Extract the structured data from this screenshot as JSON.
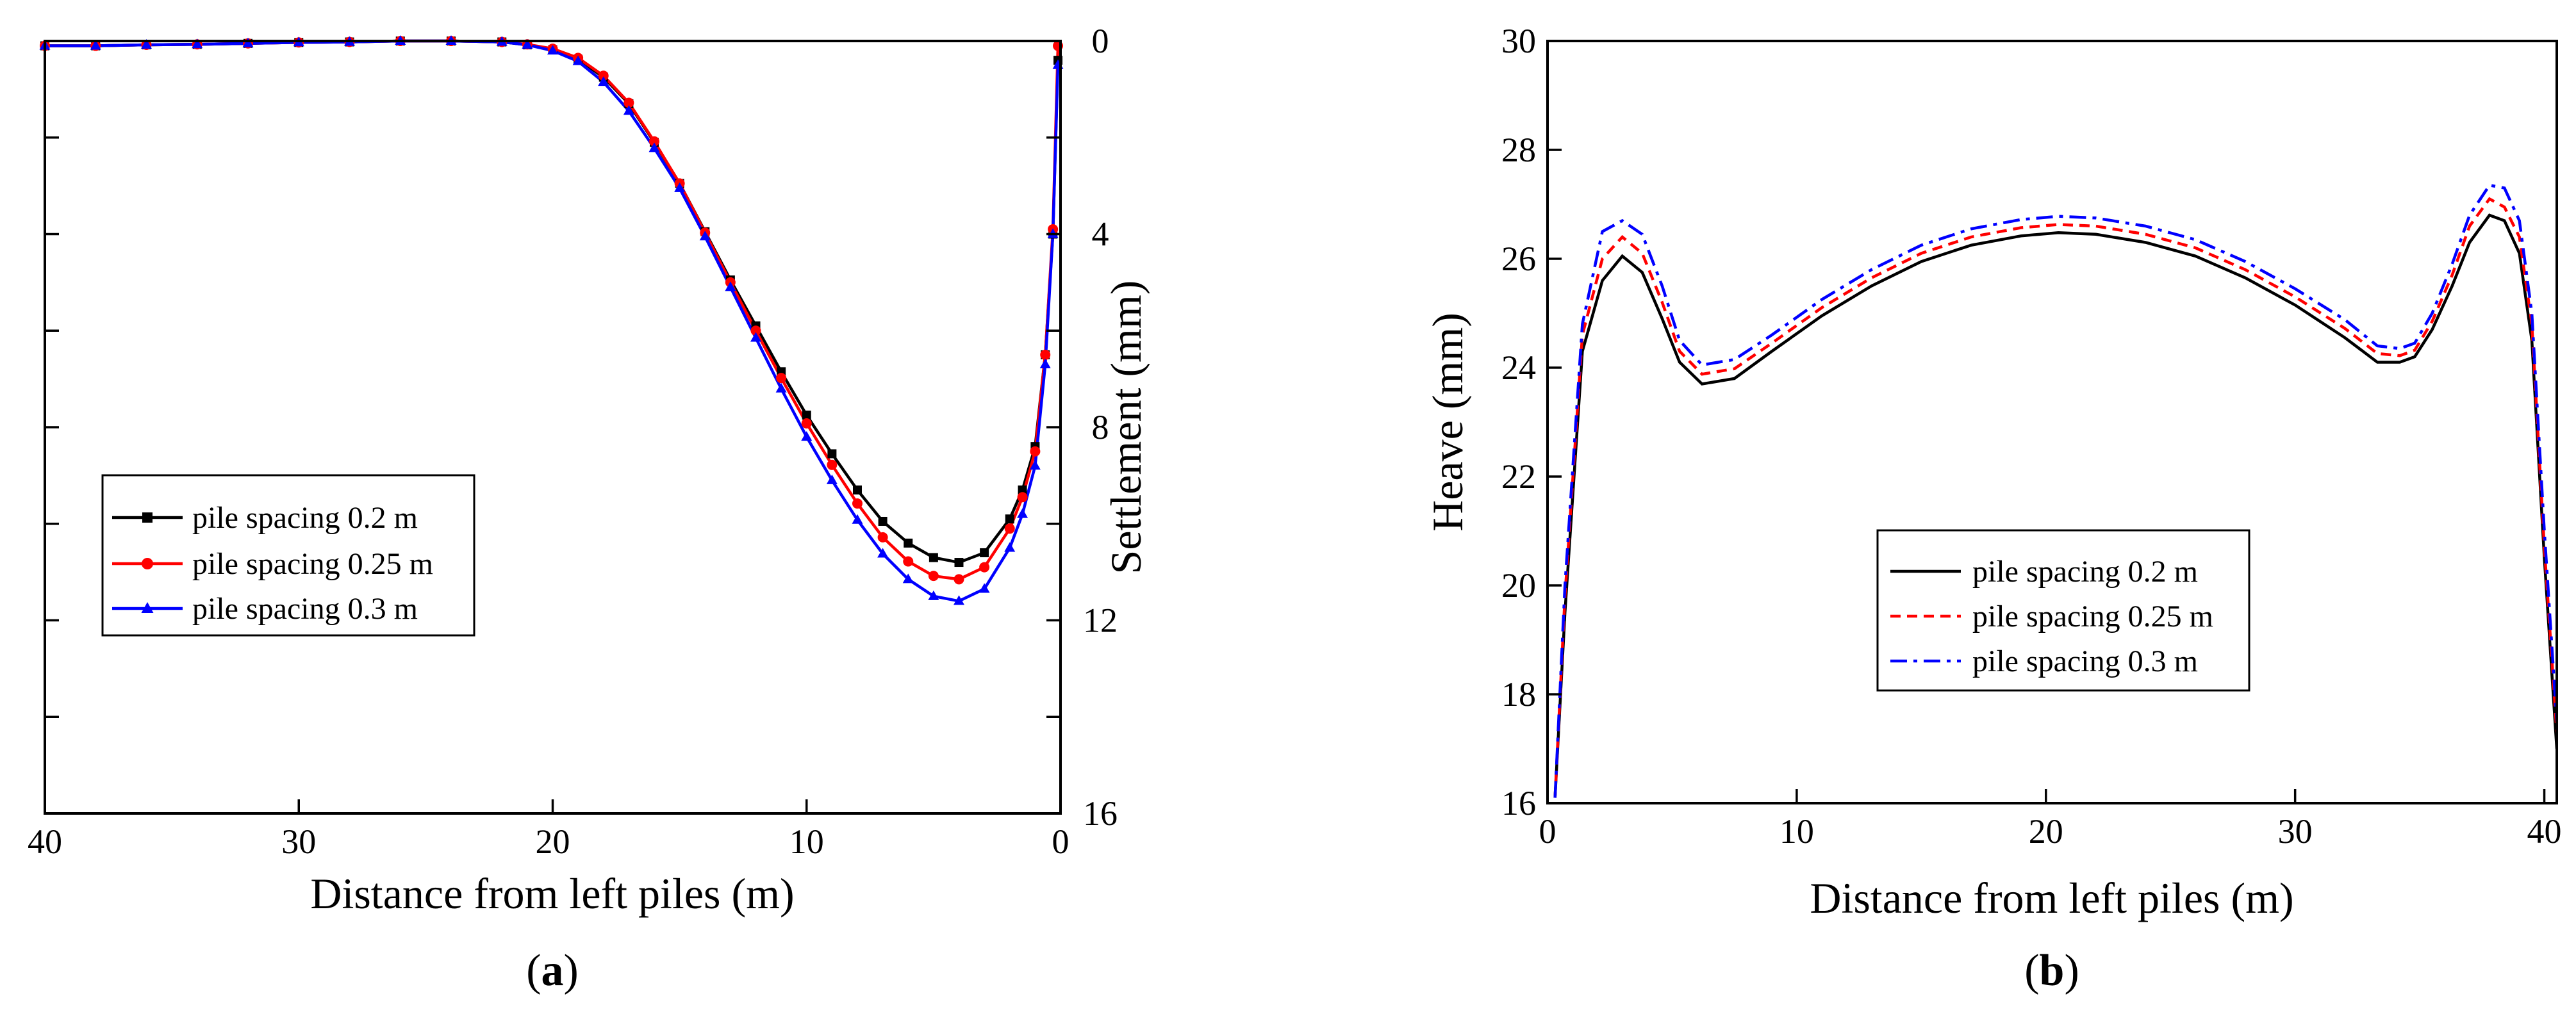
{
  "figure": {
    "panel_a_label": "a",
    "panel_b_label": "b"
  },
  "chart_data": [
    {
      "type": "line",
      "panel": "a",
      "xlabel": "Distance from left piles (m)",
      "ylabel": "Settlement (mm)",
      "xlim": [
        40,
        0
      ],
      "ylim": [
        0,
        16
      ],
      "xticks": [
        40,
        30,
        20,
        10,
        0
      ],
      "yticks_labeled": [
        0,
        4,
        8,
        12,
        16
      ],
      "yticks_minor": [
        2,
        6,
        10,
        14
      ],
      "yaxis_side": "right",
      "y_inverted": true,
      "legend_position": "center-left",
      "x": [
        40,
        38,
        36,
        34,
        32,
        30,
        28,
        26,
        24,
        22,
        21,
        20,
        19,
        18,
        17,
        16,
        15,
        14,
        13,
        12,
        11,
        10,
        9,
        8,
        7,
        6,
        5,
        4,
        3,
        2,
        1.5,
        1,
        0.6,
        0.3,
        0.1
      ],
      "series": [
        {
          "name": "pile spacing 0.2 m",
          "color": "#000000",
          "marker": "square",
          "values": [
            0.1,
            0.1,
            0.08,
            0.07,
            0.05,
            0.03,
            0.02,
            0.0,
            0.0,
            0.02,
            0.08,
            0.18,
            0.38,
            0.75,
            1.3,
            2.1,
            2.95,
            3.95,
            4.95,
            5.9,
            6.85,
            7.75,
            8.55,
            9.3,
            9.95,
            10.4,
            10.7,
            10.8,
            10.6,
            9.9,
            9.3,
            8.4,
            6.5,
            4.0,
            0.4
          ]
        },
        {
          "name": "pile spacing 0.25 m",
          "color": "#ff0000",
          "marker": "circle",
          "values": [
            0.1,
            0.1,
            0.08,
            0.07,
            0.05,
            0.03,
            0.02,
            0.0,
            0.0,
            0.02,
            0.07,
            0.16,
            0.35,
            0.72,
            1.28,
            2.08,
            2.95,
            3.97,
            5.0,
            6.0,
            6.98,
            7.92,
            8.78,
            9.58,
            10.28,
            10.78,
            11.08,
            11.15,
            10.9,
            10.1,
            9.45,
            8.5,
            6.5,
            3.9,
            0.1
          ]
        },
        {
          "name": "pile spacing 0.3 m",
          "color": "#0000ff",
          "marker": "triangle",
          "values": [
            0.1,
            0.1,
            0.08,
            0.07,
            0.05,
            0.03,
            0.02,
            0.0,
            0.0,
            0.02,
            0.08,
            0.2,
            0.42,
            0.85,
            1.45,
            2.22,
            3.05,
            4.05,
            5.1,
            6.15,
            7.2,
            8.2,
            9.1,
            9.92,
            10.62,
            11.15,
            11.5,
            11.6,
            11.35,
            10.5,
            9.8,
            8.8,
            6.7,
            4.0,
            0.5
          ]
        }
      ]
    },
    {
      "type": "line",
      "panel": "b",
      "xlabel": "Distance from left piles (m)",
      "ylabel": "Heave (mm)",
      "xlim": [
        0,
        40.5
      ],
      "ylim": [
        16,
        30
      ],
      "xticks": [
        0,
        10,
        20,
        30,
        40
      ],
      "yticks": [
        16,
        18,
        20,
        22,
        24,
        26,
        28,
        30
      ],
      "legend_position": "center",
      "x": [
        0.3,
        0.7,
        1.4,
        2.2,
        3,
        3.8,
        4.6,
        5.3,
        6.2,
        7.5,
        9,
        11,
        13,
        15,
        17,
        19,
        20.5,
        22,
        24,
        26,
        28,
        30,
        32,
        33.3,
        34.2,
        34.8,
        35.5,
        36.3,
        37,
        37.8,
        38.4,
        39,
        39.5,
        40,
        40.5
      ],
      "series": [
        {
          "name": "pile spacing 0.2 m",
          "color": "#000000",
          "dash": "solid",
          "values": [
            16.1,
            19.5,
            24.3,
            25.6,
            26.05,
            25.75,
            24.9,
            24.1,
            23.7,
            23.8,
            24.3,
            24.95,
            25.5,
            25.95,
            26.25,
            26.42,
            26.48,
            26.45,
            26.3,
            26.05,
            25.65,
            25.15,
            24.55,
            24.1,
            24.1,
            24.2,
            24.7,
            25.5,
            26.3,
            26.8,
            26.7,
            26.1,
            24.5,
            20.5,
            17.0
          ]
        },
        {
          "name": "pile spacing 0.25 m",
          "color": "#ff0000",
          "dash": "dashed",
          "values": [
            16.1,
            19.8,
            24.6,
            26.0,
            26.4,
            26.1,
            25.2,
            24.3,
            23.88,
            23.98,
            24.45,
            25.1,
            25.65,
            26.1,
            26.4,
            26.57,
            26.63,
            26.6,
            26.45,
            26.2,
            25.8,
            25.3,
            24.72,
            24.26,
            24.22,
            24.32,
            24.85,
            25.7,
            26.6,
            27.1,
            26.95,
            26.4,
            24.8,
            20.7,
            17.3
          ]
        },
        {
          "name": "pile spacing 0.3 m",
          "color": "#0000ff",
          "dash": "dashdot",
          "values": [
            16.1,
            20.0,
            24.8,
            26.5,
            26.7,
            26.45,
            25.5,
            24.5,
            24.05,
            24.15,
            24.6,
            25.25,
            25.8,
            26.25,
            26.55,
            26.72,
            26.78,
            26.75,
            26.6,
            26.35,
            25.95,
            25.45,
            24.88,
            24.4,
            24.35,
            24.45,
            25.0,
            25.9,
            26.8,
            27.35,
            27.3,
            26.7,
            25.0,
            21.0,
            17.5
          ]
        }
      ]
    }
  ]
}
